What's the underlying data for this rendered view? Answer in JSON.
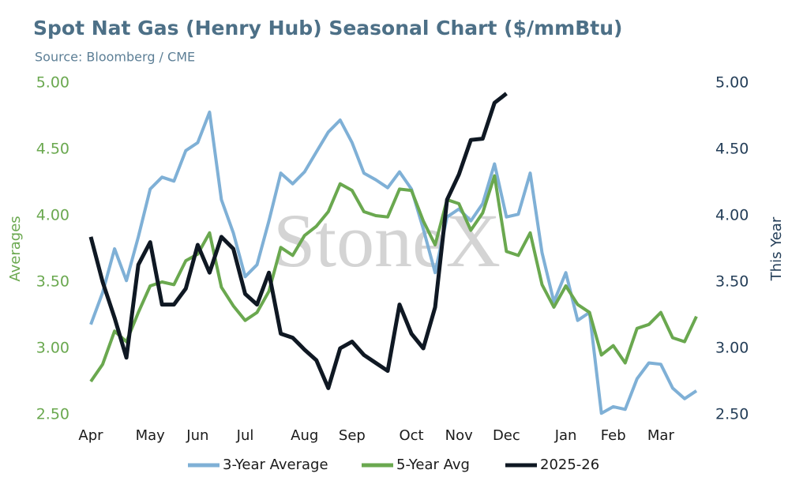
{
  "chart_data": {
    "type": "line",
    "title": "Spot Nat Gas (Henry Hub) Seasonal Chart ($/mmBtu)",
    "subtitle": "Source: Bloomberg / CME",
    "watermark": "StoneX",
    "y_label": "Averages",
    "y2_label": "This Year",
    "categories": [
      "Apr",
      null,
      null,
      null,
      null,
      "May",
      null,
      null,
      null,
      "Jun",
      null,
      null,
      null,
      "Jul",
      null,
      null,
      null,
      null,
      "Aug",
      null,
      null,
      null,
      "Sep",
      null,
      null,
      null,
      null,
      "Oct",
      null,
      null,
      null,
      "Nov",
      null,
      null,
      null,
      "Dec",
      null,
      null,
      null,
      null,
      "Jan",
      null,
      null,
      null,
      "Feb",
      null,
      null,
      null,
      "Mar",
      null,
      null,
      null
    ],
    "ylim": [
      2.5,
      5.0
    ],
    "yticks": [
      {
        "value": 2.5,
        "label": "2.50"
      },
      {
        "value": 3.0,
        "label": "3.00"
      },
      {
        "value": 3.5,
        "label": "3.50"
      },
      {
        "value": 4.0,
        "label": "4.00"
      },
      {
        "value": 4.5,
        "label": "4.50"
      },
      {
        "value": 5.0,
        "label": "5.00"
      }
    ],
    "y2lim": [
      2.5,
      5.0
    ],
    "y2ticks": [
      {
        "value": 2.5,
        "label": "2.50"
      },
      {
        "value": 3.0,
        "label": "3.00"
      },
      {
        "value": 3.5,
        "label": "3.50"
      },
      {
        "value": 4.0,
        "label": "4.00"
      },
      {
        "value": 4.5,
        "label": "4.50"
      },
      {
        "value": 5.0,
        "label": "5.00"
      }
    ],
    "legend": "bottom",
    "series": [
      {
        "name": "3-Year Average",
        "color": "#7fb0d6",
        "values": [
          3.18,
          3.42,
          3.75,
          3.51,
          3.84,
          4.2,
          4.29,
          4.26,
          4.49,
          4.55,
          4.78,
          4.12,
          3.87,
          3.54,
          3.63,
          3.96,
          4.32,
          4.24,
          4.33,
          4.48,
          4.63,
          4.72,
          4.55,
          4.32,
          4.27,
          4.21,
          4.33,
          4.2,
          3.9,
          3.57,
          3.99,
          4.05,
          3.96,
          4.09,
          4.39,
          3.99,
          4.01,
          4.32,
          3.72,
          3.35,
          3.57,
          3.21,
          3.27,
          2.51,
          2.56,
          2.54,
          2.77,
          2.89,
          2.88,
          2.7,
          2.62,
          2.68
        ]
      },
      {
        "name": "5-Year Avg",
        "color": "#6aa84f",
        "values": [
          2.75,
          2.88,
          3.13,
          3.05,
          3.27,
          3.47,
          3.5,
          3.48,
          3.66,
          3.71,
          3.87,
          3.46,
          3.32,
          3.21,
          3.27,
          3.43,
          3.76,
          3.7,
          3.85,
          3.92,
          4.03,
          4.24,
          4.19,
          4.03,
          4.0,
          3.99,
          4.2,
          4.19,
          3.96,
          3.78,
          4.12,
          4.09,
          3.89,
          4.02,
          4.3,
          3.73,
          3.7,
          3.87,
          3.48,
          3.31,
          3.47,
          3.33,
          3.27,
          2.95,
          3.02,
          2.89,
          3.15,
          3.18,
          3.27,
          3.08,
          3.05,
          3.24
        ]
      },
      {
        "name": "2025-26",
        "color": "#0f1823",
        "axis": "y2",
        "values": [
          3.84,
          3.5,
          3.23,
          2.93,
          3.63,
          3.8,
          3.33,
          3.33,
          3.45,
          3.78,
          3.57,
          3.84,
          3.75,
          3.41,
          3.33,
          3.57,
          3.11,
          3.08,
          2.99,
          2.91,
          2.7,
          3.0,
          3.05,
          2.95,
          2.89,
          2.83,
          3.33,
          3.11,
          3.0,
          3.31,
          4.12,
          4.31,
          4.57,
          4.58,
          4.85,
          4.92,
          null,
          null,
          null,
          null,
          null,
          null,
          null,
          null,
          null,
          null,
          null,
          null,
          null,
          null,
          null,
          null
        ]
      }
    ]
  }
}
